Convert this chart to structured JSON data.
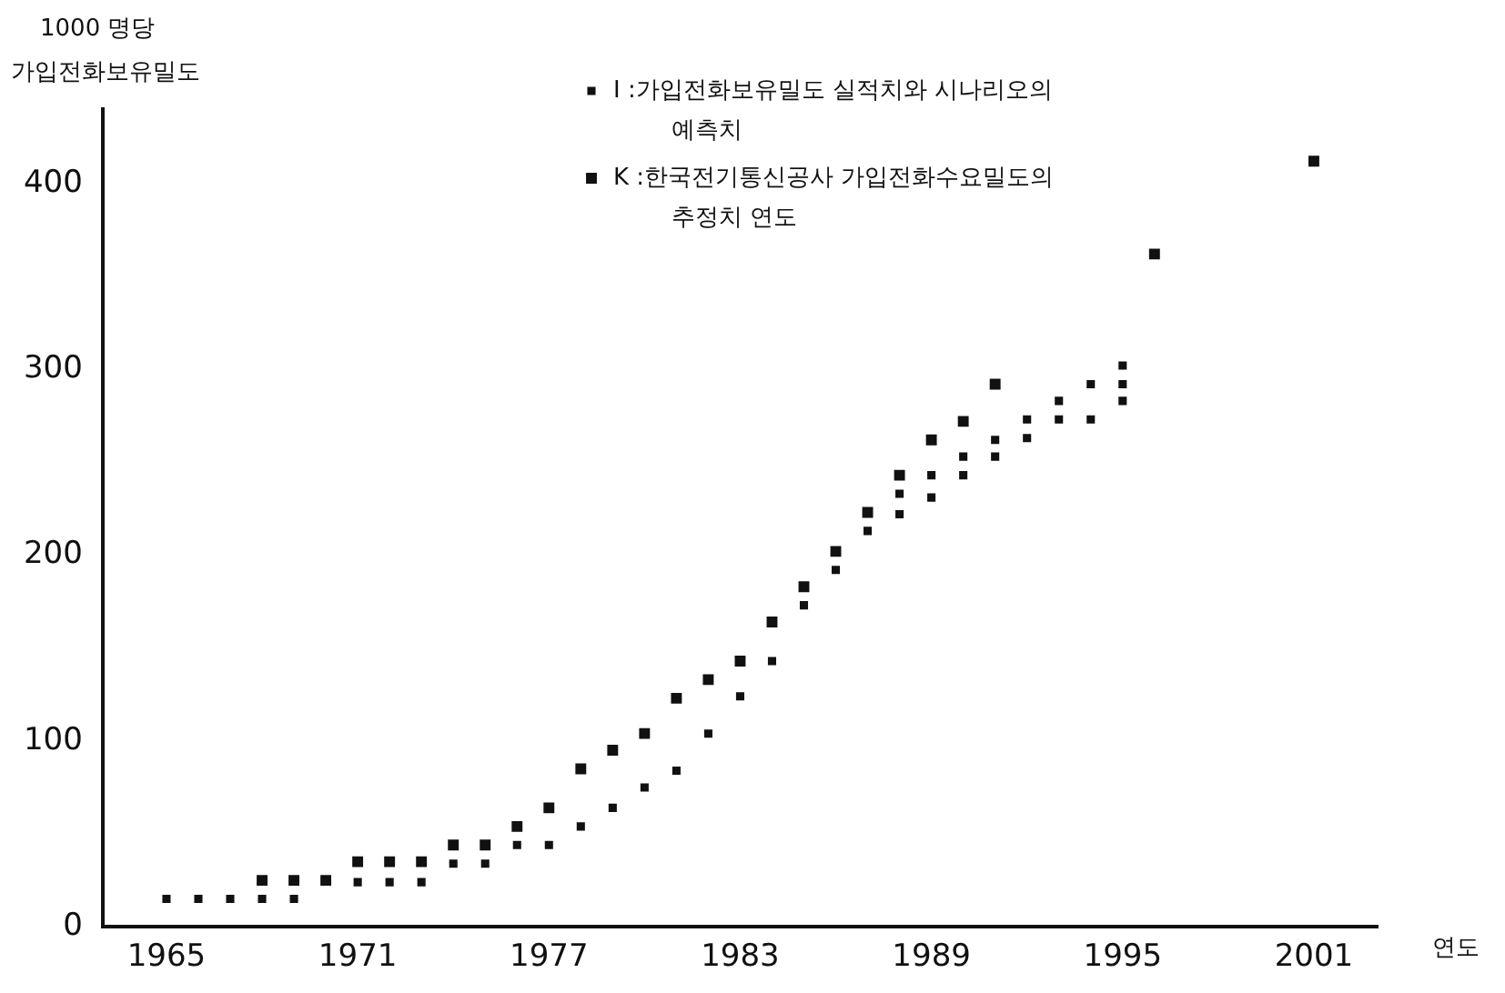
{
  "chart_data": {
    "type": "scatter",
    "ylabel": "1000 명당\n가입전화보유밀도",
    "xlabel": "연도",
    "xlim": [
      1963,
      2003
    ],
    "xticks": [
      1965,
      1971,
      1977,
      1983,
      1989,
      1995,
      2001
    ],
    "ylim": [
      0,
      440
    ],
    "yticks": [
      0,
      100,
      200,
      300,
      400
    ],
    "grid": false,
    "legend": "top right",
    "series": [
      {
        "name": "I :가입전화보유밀도 실적치와 시나리오의\n예측치",
        "color": "#111111",
        "marker": "square",
        "x": [
          1965,
          1966,
          1967,
          1968,
          1969,
          1971,
          1972,
          1973,
          1974,
          1975,
          1976,
          1977,
          1978,
          1979,
          1980,
          1981,
          1982,
          1983,
          1984,
          1985,
          1986,
          1987,
          1988,
          1988,
          1989,
          1989,
          1990,
          1990,
          1991,
          1991,
          1992,
          1992,
          1993,
          1993,
          1994,
          1994,
          1995,
          1995,
          1995
        ],
        "values": [
          15,
          15,
          15,
          15,
          15,
          24,
          24,
          24,
          34,
          34,
          44,
          44,
          54,
          64,
          75,
          84,
          104,
          124,
          143,
          173,
          192,
          213,
          233,
          222,
          243,
          231,
          253,
          243,
          262,
          253,
          273,
          263,
          283,
          273,
          292,
          273,
          302,
          292,
          283
        ]
      },
      {
        "name": "K :한국전기통신공사 가입전화수요밀도의\n추정치 연도",
        "color": "#111111",
        "marker": "square",
        "x": [
          1968,
          1969,
          1970,
          1971,
          1972,
          1973,
          1974,
          1975,
          1976,
          1977,
          1978,
          1979,
          1980,
          1981,
          1982,
          1983,
          1984,
          1985,
          1986,
          1987,
          1988,
          1989,
          1990,
          1991,
          1996,
          2001
        ],
        "values": [
          25,
          25,
          25,
          35,
          35,
          35,
          44,
          44,
          54,
          64,
          85,
          95,
          104,
          123,
          133,
          143,
          164,
          183,
          202,
          223,
          243,
          262,
          272,
          292,
          362,
          412
        ]
      }
    ]
  }
}
